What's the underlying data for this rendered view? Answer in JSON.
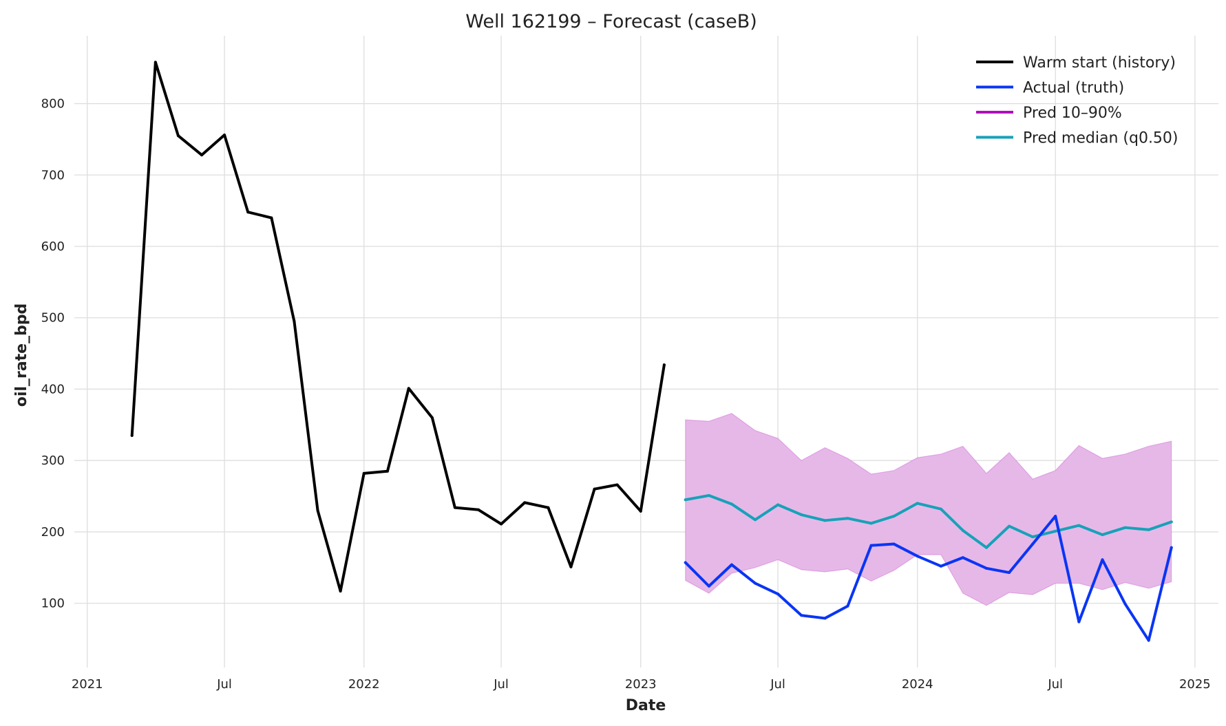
{
  "chart_data": {
    "type": "line",
    "title": "Well 162199 – Forecast (caseB)",
    "xlabel": "Date",
    "ylabel": "oil_rate_bpd",
    "grid": true,
    "legend_position": "top-right",
    "x_axis": {
      "type": "date",
      "range": [
        "2020-12-15",
        "2025-02-01"
      ],
      "ticks": [
        {
          "date": "2021-01-01",
          "label": "2021"
        },
        {
          "date": "2021-07-01",
          "label": "Jul"
        },
        {
          "date": "2022-01-01",
          "label": "2022"
        },
        {
          "date": "2022-07-01",
          "label": "Jul"
        },
        {
          "date": "2023-01-01",
          "label": "2023"
        },
        {
          "date": "2023-07-01",
          "label": "Jul"
        },
        {
          "date": "2024-01-01",
          "label": "2024"
        },
        {
          "date": "2024-07-01",
          "label": "Jul"
        },
        {
          "date": "2025-01-01",
          "label": "2025"
        }
      ]
    },
    "y_axis": {
      "range": [
        10,
        895
      ],
      "ticks": [
        100,
        200,
        300,
        400,
        500,
        600,
        700,
        800
      ]
    },
    "series": [
      {
        "name": "Warm start (history)",
        "kind": "line",
        "color": "#000000",
        "x": [
          "2021-03-01",
          "2021-04-01",
          "2021-05-01",
          "2021-06-01",
          "2021-07-01",
          "2021-08-01",
          "2021-09-01",
          "2021-10-01",
          "2021-11-01",
          "2021-12-01",
          "2022-01-01",
          "2022-02-01",
          "2022-03-01",
          "2022-04-01",
          "2022-05-01",
          "2022-06-01",
          "2022-07-01",
          "2022-08-01",
          "2022-09-01",
          "2022-10-01",
          "2022-11-01",
          "2022-12-01",
          "2023-01-01",
          "2023-02-01"
        ],
        "y": [
          335,
          858,
          755,
          728,
          756,
          648,
          640,
          495,
          230,
          117,
          282,
          285,
          401,
          360,
          234,
          231,
          211,
          241,
          234,
          151,
          260,
          266,
          229,
          434
        ]
      },
      {
        "name": "Actual (truth)",
        "kind": "line",
        "color": "#0a35f5",
        "x": [
          "2023-03-01",
          "2023-04-01",
          "2023-05-01",
          "2023-06-01",
          "2023-07-01",
          "2023-08-01",
          "2023-09-01",
          "2023-10-01",
          "2023-11-01",
          "2023-12-01",
          "2024-01-01",
          "2024-02-01",
          "2024-03-01",
          "2024-04-01",
          "2024-05-01",
          "2024-06-01",
          "2024-07-01",
          "2024-08-01",
          "2024-09-01",
          "2024-10-01",
          "2024-11-01",
          "2024-12-01"
        ],
        "y": [
          157,
          124,
          154,
          128,
          113,
          83,
          79,
          96,
          181,
          183,
          166,
          152,
          164,
          149,
          143,
          183,
          222,
          74,
          161,
          99,
          48,
          178
        ]
      },
      {
        "name": "Pred 10–90%",
        "kind": "band",
        "color": "#b10ebd",
        "fill_color": "#e6b8e8",
        "x": [
          "2023-03-01",
          "2023-04-01",
          "2023-05-01",
          "2023-06-01",
          "2023-07-01",
          "2023-08-01",
          "2023-09-01",
          "2023-10-01",
          "2023-11-01",
          "2023-12-01",
          "2024-01-01",
          "2024-02-01",
          "2024-03-01",
          "2024-04-01",
          "2024-05-01",
          "2024-06-01",
          "2024-07-01",
          "2024-08-01",
          "2024-09-01",
          "2024-10-01",
          "2024-11-01",
          "2024-12-01"
        ],
        "lower": [
          132,
          114,
          142,
          150,
          161,
          147,
          144,
          148,
          131,
          146,
          168,
          168,
          114,
          97,
          115,
          112,
          128,
          128,
          119,
          129,
          121,
          130
        ],
        "upper": [
          357,
          355,
          366,
          342,
          331,
          300,
          318,
          303,
          281,
          286,
          304,
          309,
          320,
          282,
          311,
          274,
          286,
          321,
          303,
          309,
          320,
          327
        ]
      },
      {
        "name": "Pred median (q0.50)",
        "kind": "line",
        "color": "#17a2b8",
        "x": [
          "2023-03-01",
          "2023-04-01",
          "2023-05-01",
          "2023-06-01",
          "2023-07-01",
          "2023-08-01",
          "2023-09-01",
          "2023-10-01",
          "2023-11-01",
          "2023-12-01",
          "2024-01-01",
          "2024-02-01",
          "2024-03-01",
          "2024-04-01",
          "2024-05-01",
          "2024-06-01",
          "2024-07-01",
          "2024-08-01",
          "2024-09-01",
          "2024-10-01",
          "2024-11-01",
          "2024-12-01"
        ],
        "y": [
          245,
          251,
          239,
          217,
          238,
          224,
          216,
          219,
          212,
          222,
          240,
          232,
          202,
          178,
          208,
          193,
          201,
          209,
          196,
          206,
          203,
          214
        ]
      }
    ]
  }
}
